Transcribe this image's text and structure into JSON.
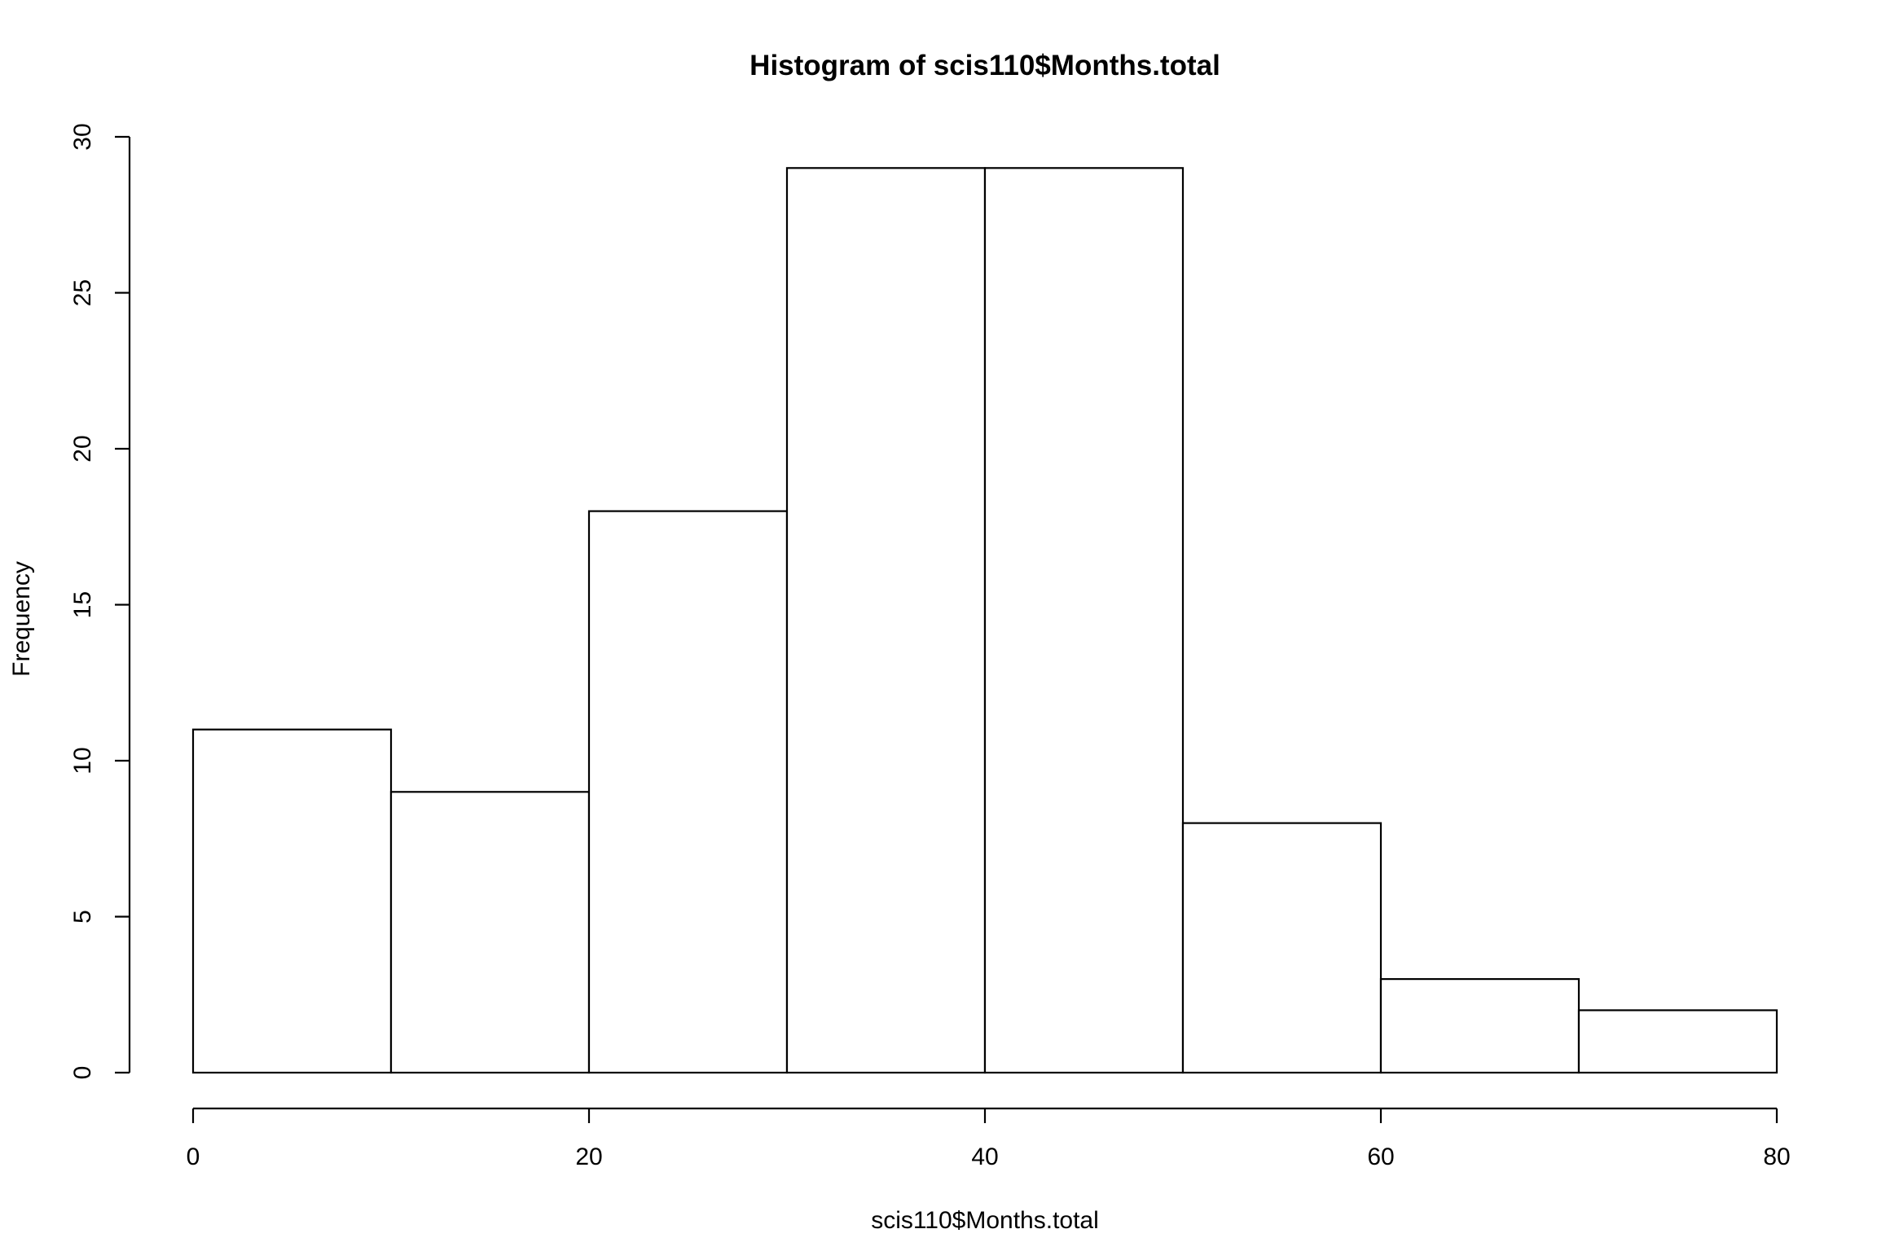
{
  "chart_data": {
    "type": "bar",
    "title": "Histogram of scis110$Months.total",
    "xlabel": "scis110$Months.total",
    "ylabel": "Frequency",
    "bins": [
      {
        "start": 0,
        "end": 10,
        "count": 11
      },
      {
        "start": 10,
        "end": 20,
        "count": 9
      },
      {
        "start": 20,
        "end": 30,
        "count": 18
      },
      {
        "start": 30,
        "end": 40,
        "count": 29
      },
      {
        "start": 40,
        "end": 50,
        "count": 29
      },
      {
        "start": 50,
        "end": 60,
        "count": 8
      },
      {
        "start": 60,
        "end": 70,
        "count": 3
      },
      {
        "start": 70,
        "end": 80,
        "count": 2
      }
    ],
    "xlim": [
      0,
      80
    ],
    "ylim": [
      0,
      30
    ],
    "x_ticks": [
      "0",
      "20",
      "40",
      "60",
      "80"
    ],
    "y_ticks": [
      "0",
      "5",
      "10",
      "15",
      "20",
      "25",
      "30"
    ],
    "grid": false,
    "bar_fill": "#ffffff",
    "bar_stroke": "#000000"
  }
}
